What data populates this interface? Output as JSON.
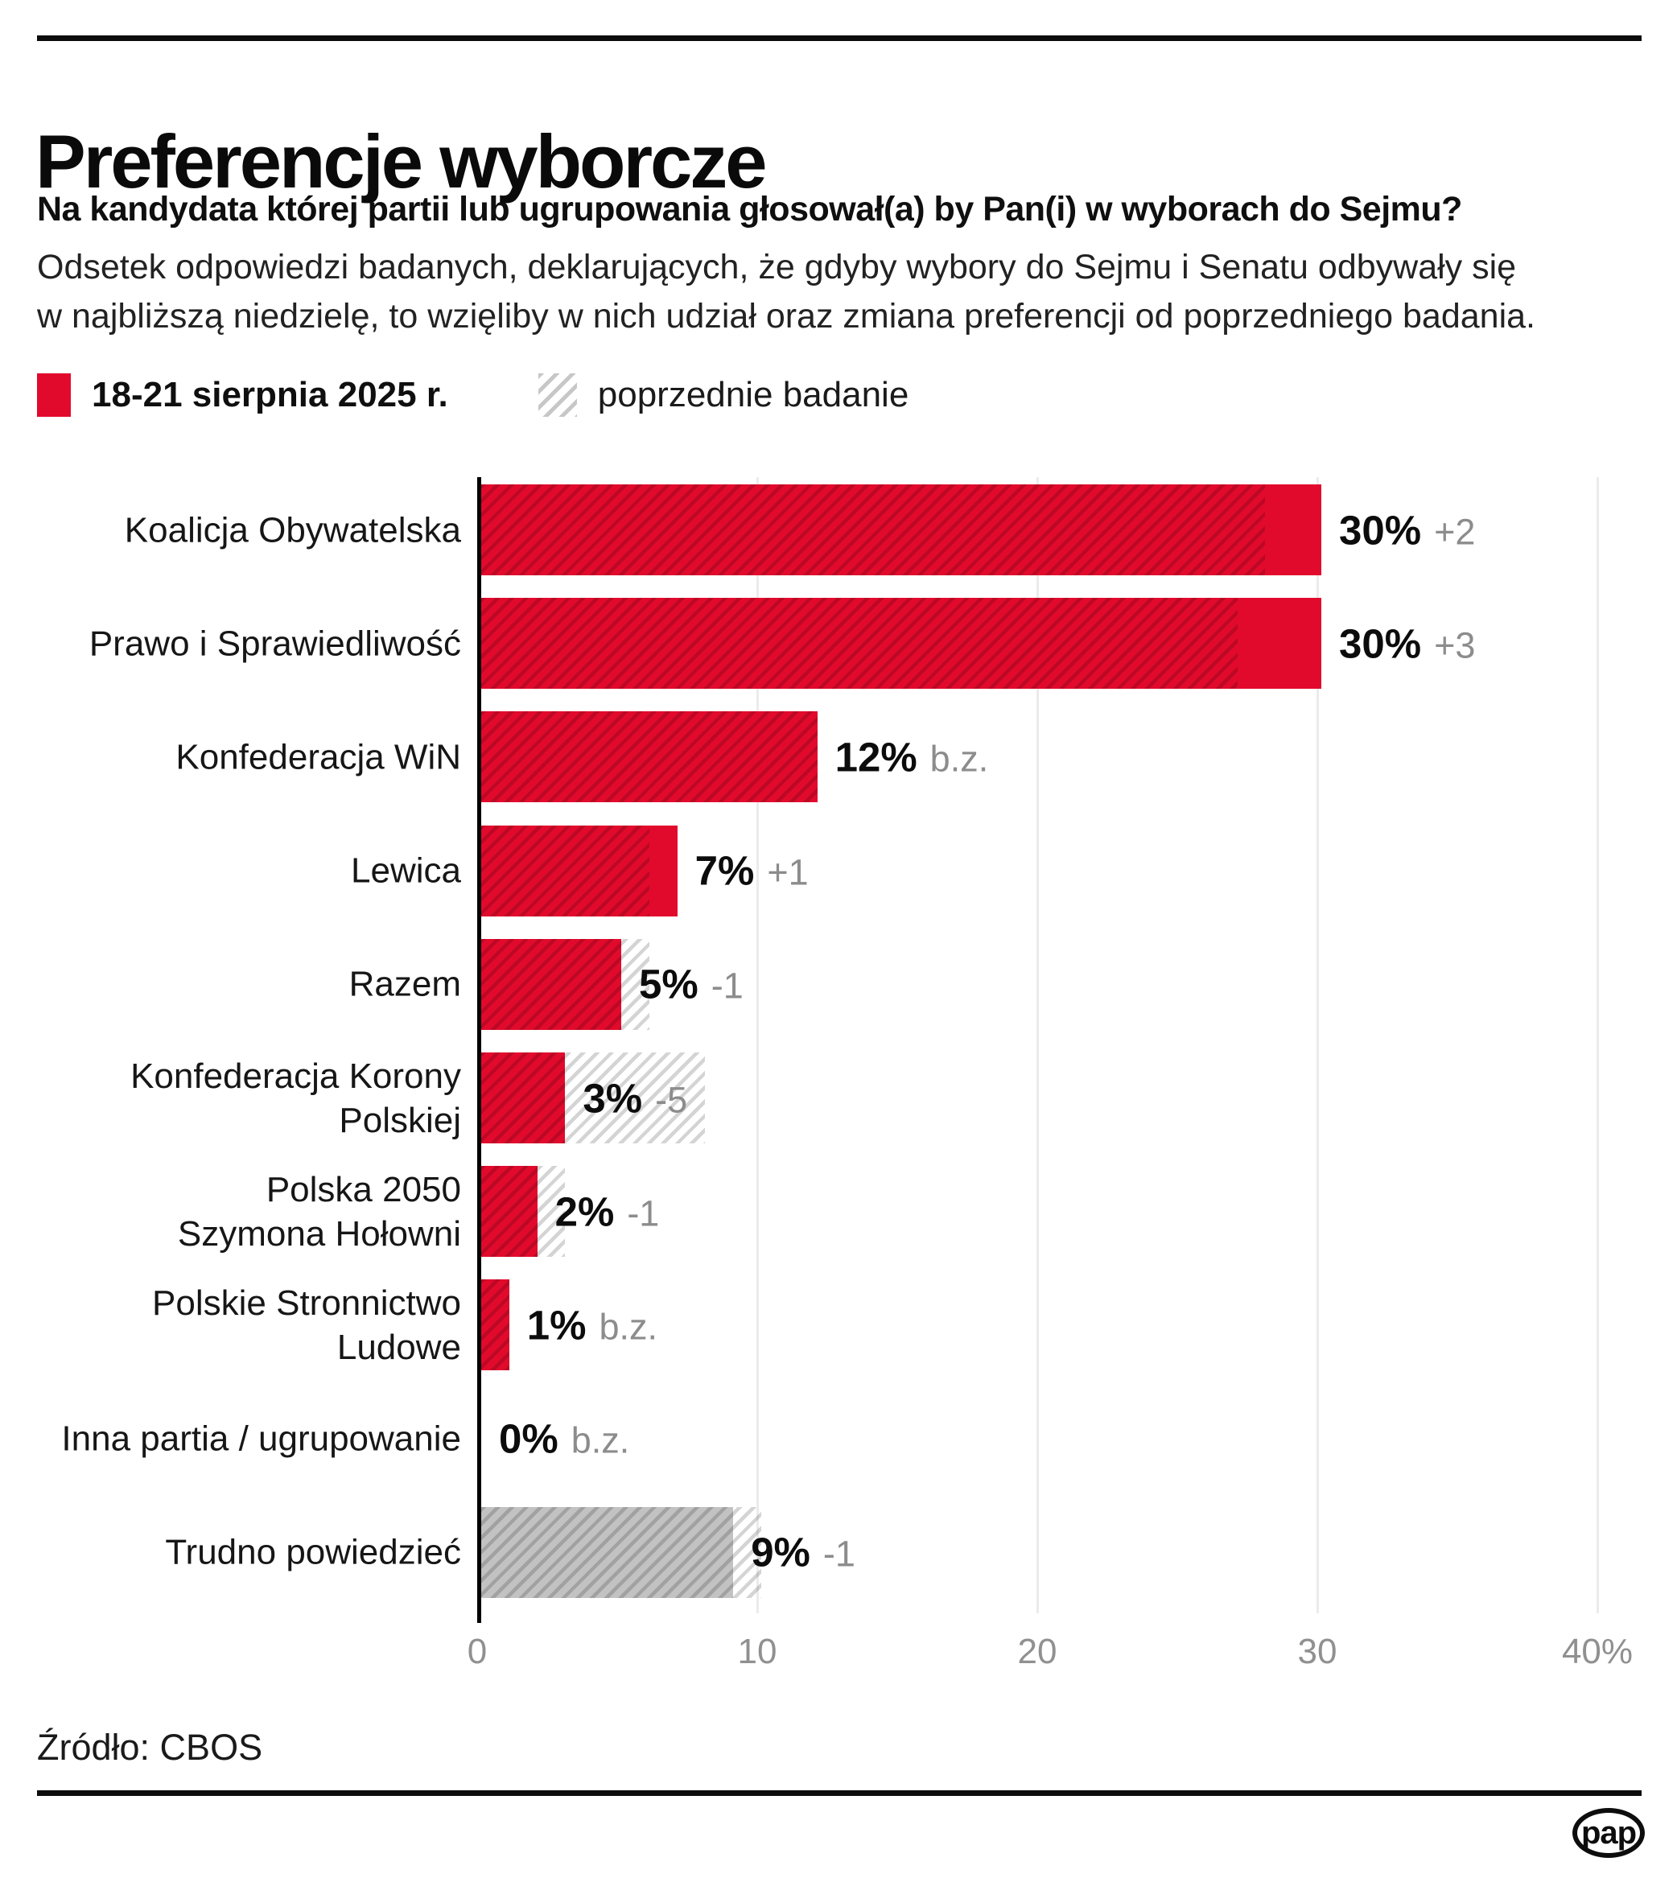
{
  "header": {
    "title": "Preferencje wyborcze",
    "question": "Na kandydata której partii lub ugrupowania głosował(a) by Pan(i) w wyborach do Sejmu?",
    "description": "Odsetek odpowiedzi badanych, deklarujących, że gdyby wybory do Sejmu i Senatu odbywały się\nw najbliższą niedzielę, to wzięliby w nich udział oraz zmiana preferencji od poprzedniego badania."
  },
  "legend": {
    "current_label": "18-21 sierpnia 2025 r.",
    "previous_label": "poprzednie badanie"
  },
  "colors": {
    "current_bar": "#e20a2c",
    "undecided_bar": "#c2c2c2",
    "hatch_line": "rgba(0,0,0,0.17)",
    "grid": "#ebebeb",
    "change_text": "#8c8c8c",
    "tick_text": "#909090"
  },
  "chart_data": {
    "type": "bar",
    "orientation": "horizontal",
    "unit": "%",
    "xlim": [
      0,
      40
    ],
    "grid": "vertical",
    "xticks": [
      {
        "value": 0,
        "label": "0"
      },
      {
        "value": 10,
        "label": "10"
      },
      {
        "value": 20,
        "label": "20"
      },
      {
        "value": 30,
        "label": "30"
      },
      {
        "value": 40,
        "label": "40%"
      }
    ],
    "series": [
      {
        "name": "18-21 sierpnia 2025 r.",
        "style": "solid"
      },
      {
        "name": "poprzednie badanie",
        "style": "hatched-overlay"
      }
    ],
    "rows": [
      {
        "label": "Koalicja Obywatelska",
        "value": 30,
        "previous": 28,
        "value_label": "30%",
        "change": "+2",
        "bar": "red"
      },
      {
        "label": "Prawo i Sprawiedliwość",
        "value": 30,
        "previous": 27,
        "value_label": "30%",
        "change": "+3",
        "bar": "red"
      },
      {
        "label": "Konfederacja WiN",
        "value": 12,
        "previous": 12,
        "value_label": "12%",
        "change": "b.z.",
        "bar": "red"
      },
      {
        "label": "Lewica",
        "value": 7,
        "previous": 6,
        "value_label": "7%",
        "change": "+1",
        "bar": "red"
      },
      {
        "label": "Razem",
        "value": 5,
        "previous": 6,
        "value_label": "5%",
        "change": "-1",
        "bar": "red"
      },
      {
        "label": "Konfederacja Korony\nPolskiej",
        "value": 3,
        "previous": 8,
        "value_label": "3%",
        "change": "-5",
        "bar": "red"
      },
      {
        "label": "Polska 2050\nSzymona Hołowni",
        "value": 2,
        "previous": 3,
        "value_label": "2%",
        "change": "-1",
        "bar": "red"
      },
      {
        "label": "Polskie Stronnictwo\nLudowe",
        "value": 1,
        "previous": 1,
        "value_label": "1%",
        "change": "b.z.",
        "bar": "red"
      },
      {
        "label": "Inna partia / ugrupowanie",
        "value": 0,
        "previous": 0,
        "value_label": "0%",
        "change": "b.z.",
        "bar": "red"
      },
      {
        "label": "Trudno powiedzieć",
        "value": 9,
        "previous": 10,
        "value_label": "9%",
        "change": "-1",
        "bar": "gray"
      }
    ]
  },
  "footer": {
    "source": "Źródło: CBOS",
    "logo_text": "pap"
  }
}
